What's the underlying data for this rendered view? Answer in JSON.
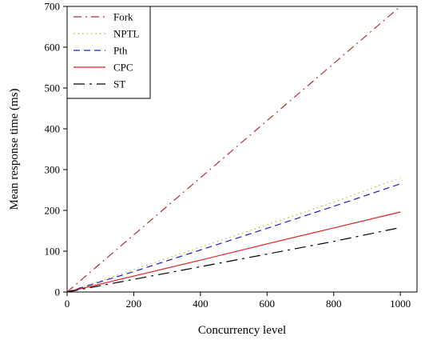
{
  "chart_data": {
    "type": "line",
    "title": "",
    "xlabel": "Concurrency level",
    "ylabel": "Mean response time (ms)",
    "xlim": [
      0,
      1050
    ],
    "ylim": [
      0,
      700
    ],
    "xticks": [
      0,
      200,
      400,
      600,
      800,
      1000
    ],
    "yticks": [
      0,
      100,
      200,
      300,
      400,
      500,
      600,
      700
    ],
    "grid": false,
    "legend_position": "top-left",
    "series": [
      {
        "name": "Fork",
        "color": "#b03030",
        "dash": "dashdot",
        "x": [
          0,
          200,
          400,
          600,
          800,
          1000
        ],
        "y": [
          0,
          140,
          280,
          420,
          560,
          700
        ]
      },
      {
        "name": "NPTL",
        "color": "#b8b830",
        "dash": "dotted",
        "x": [
          0,
          200,
          400,
          600,
          800,
          1000
        ],
        "y": [
          0,
          55,
          110,
          165,
          220,
          280
        ]
      },
      {
        "name": "Pth",
        "color": "#2020c0",
        "dash": "dashed",
        "x": [
          0,
          200,
          400,
          600,
          800,
          1000
        ],
        "y": [
          0,
          50,
          103,
          156,
          210,
          265
        ]
      },
      {
        "name": "CPC",
        "color": "#e02020",
        "dash": "solid",
        "x": [
          0,
          200,
          400,
          600,
          800,
          1000
        ],
        "y": [
          0,
          39,
          78,
          118,
          157,
          196
        ]
      },
      {
        "name": "ST",
        "color": "#000000",
        "dash": "longdash",
        "x": [
          0,
          200,
          400,
          600,
          800,
          1000
        ],
        "y": [
          0,
          31,
          62,
          93,
          124,
          158
        ]
      }
    ]
  }
}
